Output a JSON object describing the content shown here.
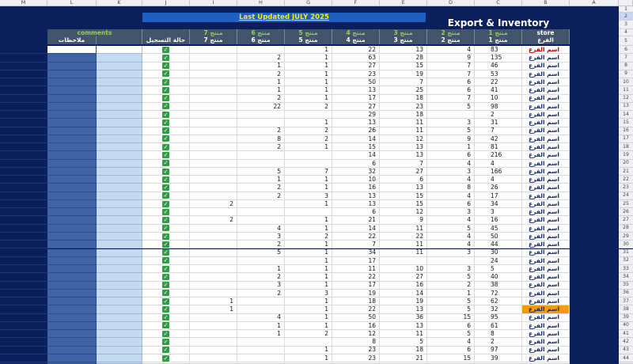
{
  "banner": "Last Updated JULY 2025",
  "title": "Export & Inventory",
  "column_letters": [
    "M",
    "L",
    "K",
    "J",
    "I",
    "H",
    "G",
    "F",
    "E",
    "D",
    "C",
    "B",
    "A"
  ],
  "header_row_1": {
    "comments": "comments",
    "products": [
      "منتج 7",
      "منتج 6",
      "منتج 5",
      "منتج 4",
      "منتج 3",
      "منتج 2",
      "منتج 1"
    ],
    "store": "store"
  },
  "header_row_2": {
    "notes": "ملاحظات",
    "status": "حالة التسجيل",
    "products": [
      "منتج 7",
      "منتج 6",
      "منتج 5",
      "منتج 4",
      "منتج 3",
      "منتج 2",
      "منتج 1"
    ],
    "branch": "الفرع"
  },
  "row_numbers": [
    1,
    2,
    3,
    4,
    5,
    6,
    7,
    8,
    9,
    10,
    11,
    12,
    13,
    14,
    15,
    16,
    17,
    18,
    19,
    20,
    21,
    22,
    23,
    24,
    25,
    26,
    27,
    28,
    29,
    30,
    31,
    32,
    33,
    34,
    35,
    36,
    37,
    38,
    39,
    40,
    41,
    42,
    43,
    44
  ],
  "rows": [
    [
      "اسم الفرع",
      83,
      4,
      13,
      22,
      1,
      null,
      null
    ],
    [
      "اسم الفرع",
      135,
      9,
      28,
      63,
      1,
      2,
      null
    ],
    [
      "اسم الفرع",
      46,
      7,
      15,
      27,
      1,
      1,
      null
    ],
    [
      "اسم الفرع",
      53,
      7,
      19,
      23,
      1,
      2,
      null
    ],
    [
      "اسم الفرع",
      22,
      6,
      7,
      50,
      1,
      1,
      null
    ],
    [
      "اسم الفرع",
      41,
      6,
      25,
      13,
      1,
      1,
      null
    ],
    [
      "اسم الفرع",
      10,
      7,
      18,
      17,
      1,
      2,
      null
    ],
    [
      "اسم الفرع",
      98,
      5,
      23,
      27,
      2,
      22,
      null
    ],
    [
      "اسم الفرع",
      2,
      null,
      18,
      29,
      null,
      null,
      null
    ],
    [
      "اسم الفرع",
      31,
      3,
      11,
      13,
      1,
      null,
      null
    ],
    [
      "اسم الفرع",
      7,
      5,
      11,
      26,
      2,
      2,
      null
    ],
    [
      "اسم الفرع",
      42,
      9,
      12,
      14,
      2,
      8,
      null
    ],
    [
      "اسم الفرع",
      81,
      1,
      13,
      15,
      1,
      2,
      null
    ],
    [
      "اسم الفرع",
      216,
      6,
      13,
      14,
      null,
      null,
      null
    ],
    [
      "اسم الفرع",
      4,
      4,
      7,
      6,
      null,
      null,
      null
    ],
    [
      "اسم الفرع",
      166,
      3,
      27,
      32,
      7,
      5,
      null
    ],
    [
      "اسم الفرع",
      4,
      4,
      6,
      10,
      1,
      1,
      null
    ],
    [
      "اسم الفرع",
      26,
      8,
      13,
      16,
      1,
      2,
      null
    ],
    [
      "اسم الفرع",
      17,
      4,
      15,
      13,
      3,
      2,
      null
    ],
    [
      "اسم الفرع",
      34,
      6,
      15,
      13,
      1,
      null,
      2
    ],
    [
      "اسم الفرع",
      3,
      3,
      12,
      6,
      null,
      null,
      null
    ],
    [
      "اسم الفرع",
      16,
      4,
      9,
      21,
      1,
      null,
      2
    ],
    [
      "اسم الفرع",
      45,
      5,
      11,
      14,
      1,
      4,
      null
    ],
    [
      "اسم الفرع",
      50,
      4,
      22,
      22,
      2,
      3,
      null
    ],
    [
      "اسم الفرع",
      44,
      4,
      11,
      7,
      1,
      2,
      null
    ],
    [
      "اسم الفرع",
      30,
      3,
      11,
      34,
      1,
      5,
      null
    ],
    [
      "اسم الفرع",
      24,
      null,
      null,
      17,
      1,
      null,
      null
    ],
    [
      "اسم الفرع",
      5,
      3,
      10,
      11,
      1,
      1,
      null
    ],
    [
      "اسم الفرع",
      40,
      5,
      27,
      22,
      1,
      2,
      null
    ],
    [
      "اسم الفرع",
      38,
      2,
      16,
      17,
      1,
      3,
      null
    ],
    [
      "اسم الفرع",
      72,
      1,
      14,
      19,
      3,
      2,
      null
    ],
    [
      "اسم الفرع",
      62,
      5,
      19,
      18,
      1,
      null,
      1
    ],
    [
      "اسم الفرع",
      32,
      5,
      13,
      22,
      1,
      null,
      1
    ],
    [
      "اسم الفرع",
      95,
      15,
      36,
      50,
      1,
      4,
      null
    ],
    [
      "اسم الفرع",
      61,
      6,
      13,
      16,
      1,
      1,
      null
    ],
    [
      "اسم الفرع",
      8,
      5,
      11,
      12,
      2,
      1,
      null
    ],
    [
      "اسم الفرع",
      2,
      4,
      5,
      8,
      null,
      null,
      null
    ],
    [
      "اسم الفرع",
      97,
      6,
      18,
      23,
      1,
      null,
      null
    ],
    [
      "اسم الفرع",
      39,
      15,
      21,
      23,
      1,
      null,
      null
    ]
  ]
}
